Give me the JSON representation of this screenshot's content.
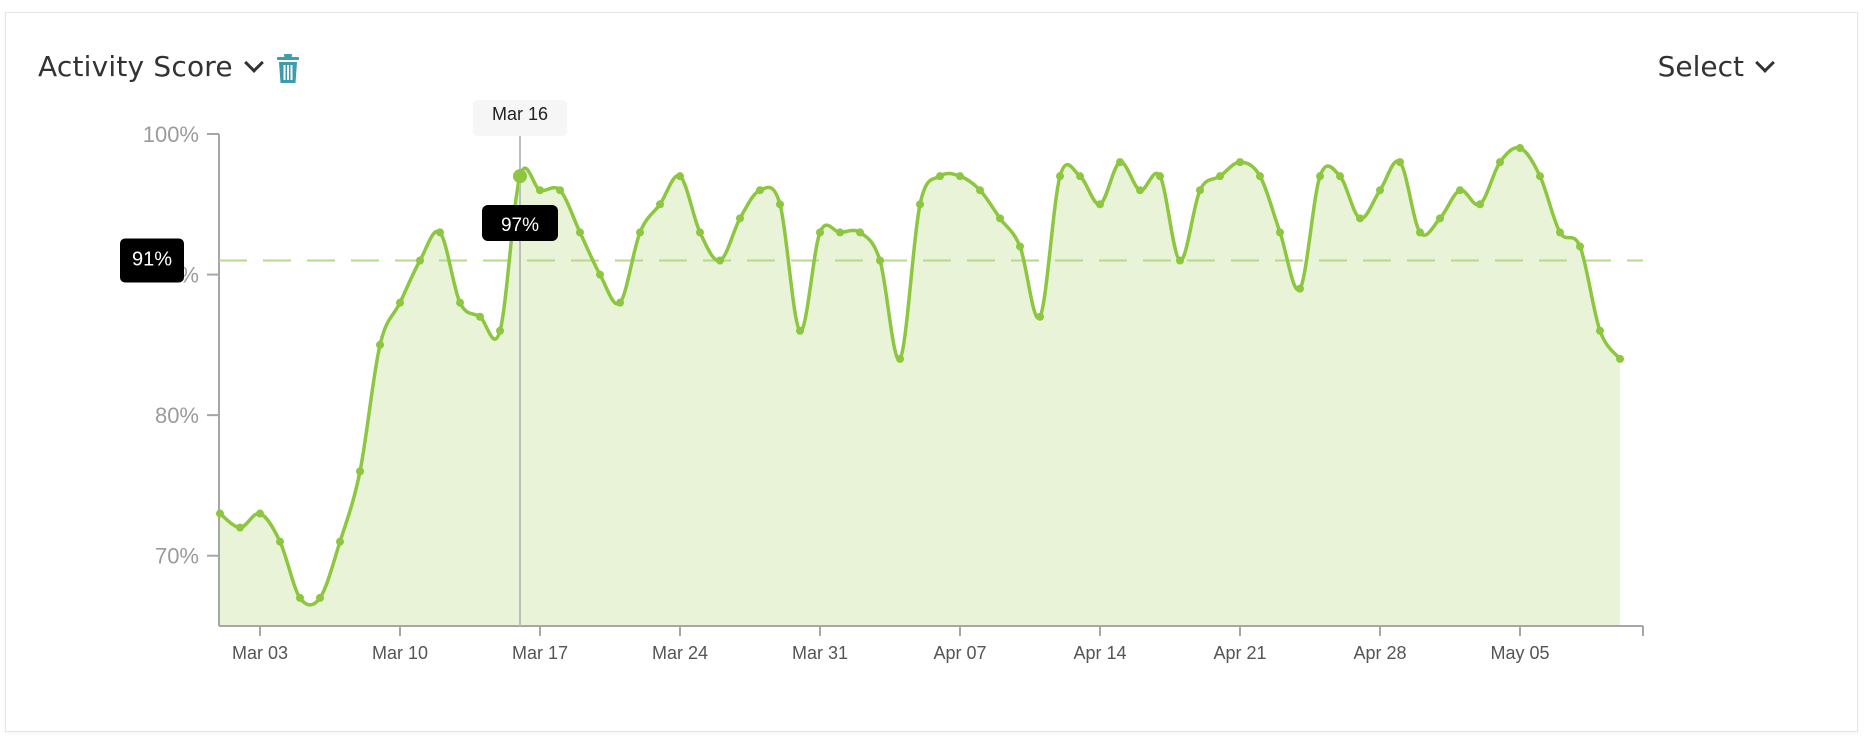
{
  "header": {
    "metric_label": "Activity Score",
    "range_label": "Select"
  },
  "icons": {
    "metric_dropdown": "chevron-down-icon",
    "delete": "trash-icon",
    "range_dropdown": "chevron-down-icon"
  },
  "colors": {
    "line": "#8dc63f",
    "fill": "#e9f3d8",
    "axis": "#a6a6a6",
    "tick_label": "#9b9b9b",
    "trash": "#3d9cb0",
    "badge_bg": "#000000"
  },
  "chart_data": {
    "type": "area",
    "x_tick_labels": [
      "Mar 03",
      "Mar 10",
      "Mar 17",
      "Mar 24",
      "Mar 31",
      "Apr 07",
      "Apr 14",
      "Apr 21",
      "Apr 28",
      "May 05"
    ],
    "y_tick_labels": [
      "70%",
      "80%",
      "90%",
      "100%"
    ],
    "ylim": [
      65,
      100
    ],
    "xlim": [
      "2018-03-01",
      "2018-05-11"
    ],
    "start_date": "2018-03-01",
    "series": [
      {
        "values": [
          73,
          72,
          73,
          71,
          67,
          67,
          71,
          76,
          85,
          88,
          91,
          93,
          88,
          87,
          86,
          97,
          96,
          96,
          93,
          90,
          88,
          93,
          95,
          97,
          93,
          91,
          94,
          96,
          95,
          86,
          93,
          93,
          93,
          91,
          84,
          95,
          97,
          97,
          96,
          94,
          92,
          87,
          97,
          97,
          95,
          98,
          96,
          97,
          91,
          96,
          97,
          98,
          97,
          93,
          89,
          97,
          97,
          94,
          96,
          98,
          93,
          94,
          96,
          95,
          98,
          99,
          97,
          93,
          92,
          86,
          84
        ]
      }
    ],
    "average": {
      "value": 91,
      "label": "91%"
    },
    "hover": {
      "date_label": "Mar 16",
      "value_label": "97%",
      "value": 97
    }
  }
}
